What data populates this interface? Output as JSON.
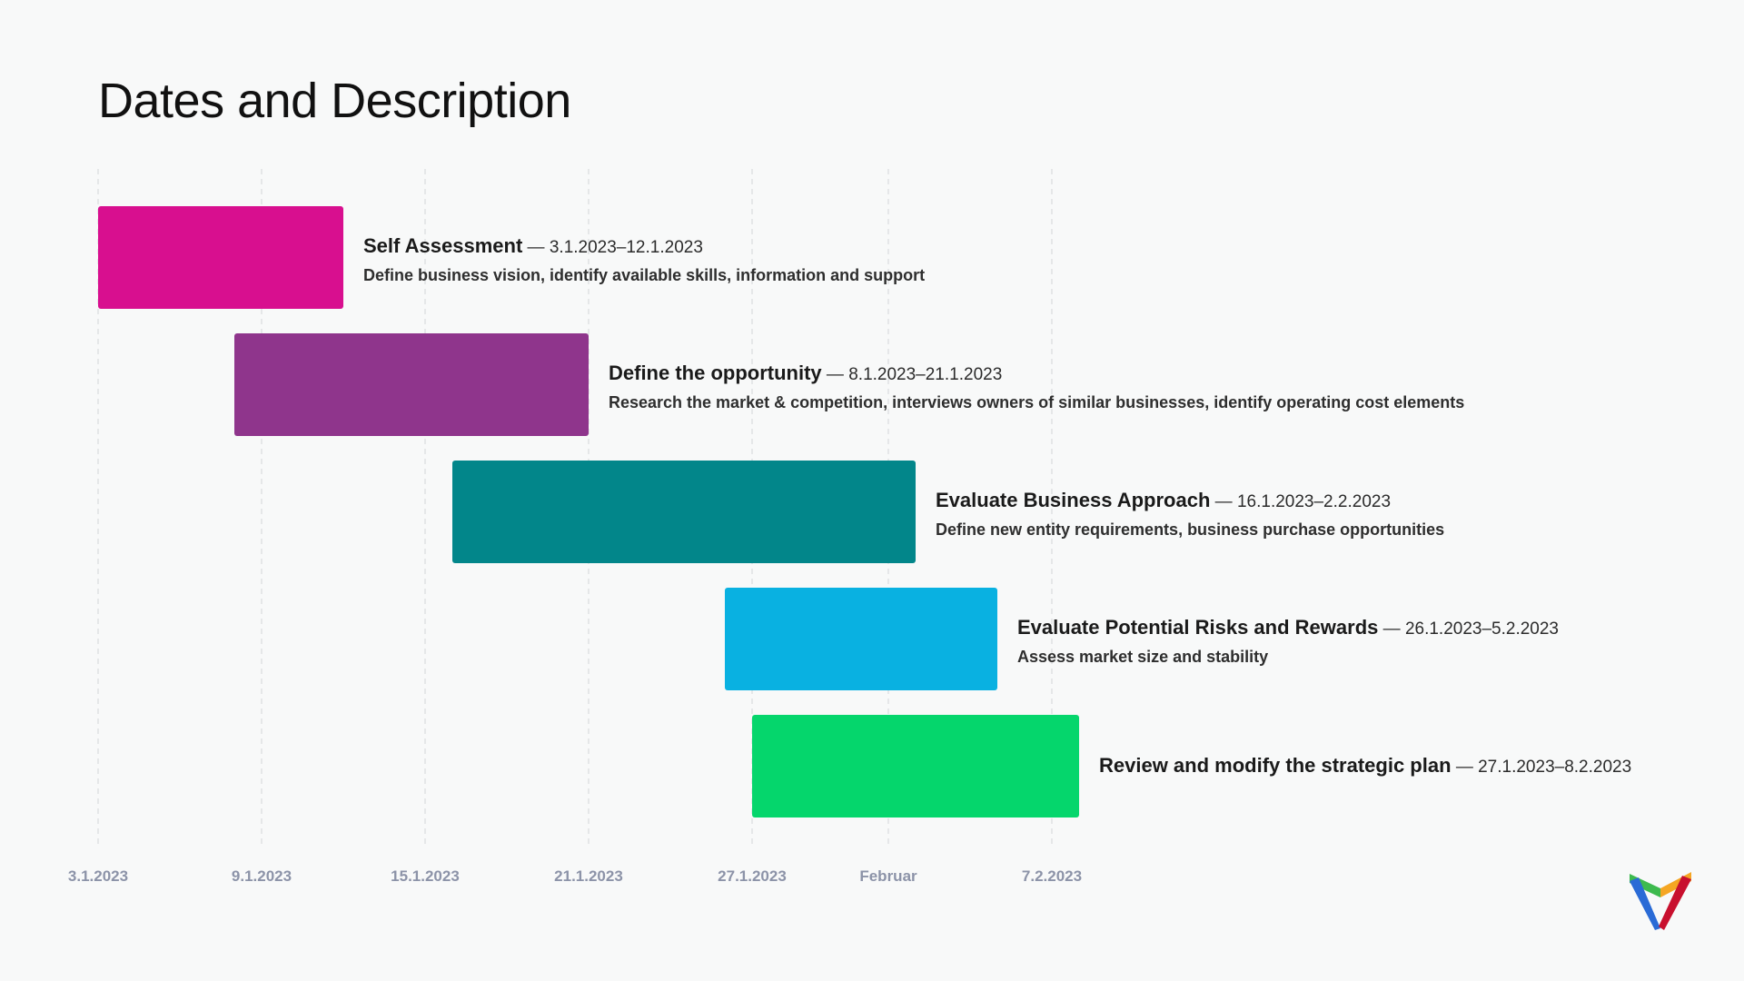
{
  "slide": {
    "title": "Dates and Description"
  },
  "logo": {
    "colors": [
      "#3dba4e",
      "#f5a623",
      "#2a6bd6",
      "#c8102e"
    ]
  },
  "chart_data": {
    "type": "gantt",
    "title": "Dates and Description",
    "x_axis": {
      "type": "date",
      "range": [
        "2023-01-03",
        "2023-02-10"
      ],
      "ticks": [
        {
          "date": "2023-01-03",
          "label": "3.1.2023"
        },
        {
          "date": "2023-01-09",
          "label": "9.1.2023"
        },
        {
          "date": "2023-01-15",
          "label": "15.1.2023"
        },
        {
          "date": "2023-01-21",
          "label": "21.1.2023"
        },
        {
          "date": "2023-01-27",
          "label": "27.1.2023"
        },
        {
          "date": "2023-02-01",
          "label": "Februar"
        },
        {
          "date": "2023-02-07",
          "label": "7.2.2023"
        }
      ],
      "grid": true
    },
    "tasks": [
      {
        "name": "Self Assessment",
        "start": "2023-01-03",
        "end": "2023-01-12",
        "range_label": "3.1.2023–12.1.2023",
        "description": "Define business vision, identify available skills, information and support",
        "color": "#d80f8f"
      },
      {
        "name": "Define the opportunity",
        "start": "2023-01-08",
        "end": "2023-01-21",
        "range_label": "8.1.2023–21.1.2023",
        "description": "Research the market & competition, interviews owners of similar businesses, identify operating cost elements",
        "color": "#8f358c"
      },
      {
        "name": "Evaluate Business Approach",
        "start": "2023-01-16",
        "end": "2023-02-02",
        "range_label": "16.1.2023–2.2.2023",
        "description": "Define new entity requirements, business purchase opportunities",
        "color": "#02868a"
      },
      {
        "name": "Evaluate Potential Risks and Rewards",
        "start": "2023-01-26",
        "end": "2023-02-05",
        "range_label": "26.1.2023–5.2.2023",
        "description": "Assess market size and stability",
        "color": "#09b1e1"
      },
      {
        "name": "Review and modify the strategic plan",
        "start": "2023-01-27",
        "end": "2023-02-08",
        "range_label": "27.1.2023–8.2.2023",
        "description": "",
        "color": "#05d66c"
      }
    ]
  }
}
